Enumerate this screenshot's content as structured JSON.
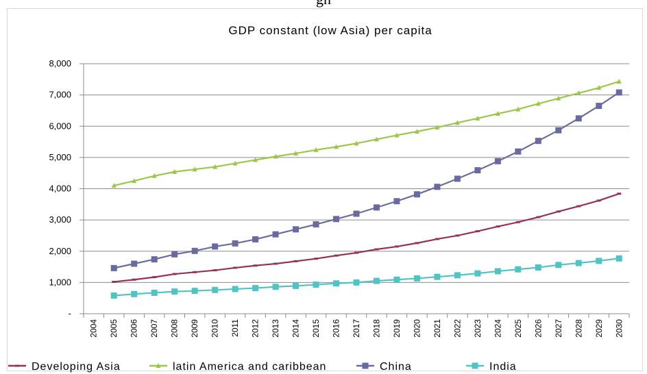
{
  "header": {
    "cropped_text": "gh"
  },
  "chart_data": {
    "type": "line",
    "title": "GDP constant (low Asia) per capita",
    "xlabel": "",
    "ylabel": "",
    "ylim": [
      0,
      8000
    ],
    "yticks": [
      "-",
      "1,000",
      "2,000",
      "3,000",
      "4,000",
      "5,000",
      "6,000",
      "7,000",
      "8,000"
    ],
    "categories": [
      "2004",
      "2005",
      "2006",
      "2007",
      "2008",
      "2009",
      "2010",
      "2011",
      "2012",
      "2013",
      "2014",
      "2015",
      "2016",
      "2017",
      "2018",
      "2019",
      "2020",
      "2021",
      "2022",
      "2023",
      "2024",
      "2025",
      "2026",
      "2027",
      "2028",
      "2029",
      "2030"
    ],
    "grid": true,
    "legend_position": "bottom",
    "series": [
      {
        "name": "Developing Asia",
        "color": "#953159",
        "marker": "dash",
        "values": [
          null,
          1020,
          1090,
          1170,
          1270,
          1330,
          1390,
          1470,
          1540,
          1600,
          1680,
          1760,
          1860,
          1950,
          2060,
          2150,
          2260,
          2390,
          2500,
          2640,
          2790,
          2930,
          3090,
          3270,
          3440,
          3620,
          3840
        ]
      },
      {
        "name": "latin America and caribbean",
        "color": "#9bc746",
        "marker": "triangle",
        "values": [
          null,
          4100,
          4250,
          4410,
          4540,
          4620,
          4700,
          4810,
          4920,
          5030,
          5130,
          5240,
          5340,
          5450,
          5580,
          5710,
          5830,
          5960,
          6110,
          6250,
          6400,
          6540,
          6720,
          6890,
          7060,
          7230,
          7430
        ]
      },
      {
        "name": "China",
        "color": "#6a6aa3",
        "marker": "square",
        "values": [
          null,
          1460,
          1600,
          1740,
          1900,
          2010,
          2150,
          2250,
          2380,
          2540,
          2700,
          2860,
          3030,
          3200,
          3400,
          3600,
          3820,
          4060,
          4320,
          4590,
          4880,
          5190,
          5530,
          5870,
          6250,
          6650,
          7080
        ]
      },
      {
        "name": "India",
        "color": "#4fc4c4",
        "marker": "square",
        "values": [
          null,
          580,
          630,
          670,
          710,
          730,
          760,
          790,
          820,
          860,
          890,
          930,
          970,
          1000,
          1050,
          1090,
          1130,
          1180,
          1230,
          1290,
          1360,
          1420,
          1480,
          1560,
          1620,
          1690,
          1770
        ]
      }
    ]
  }
}
